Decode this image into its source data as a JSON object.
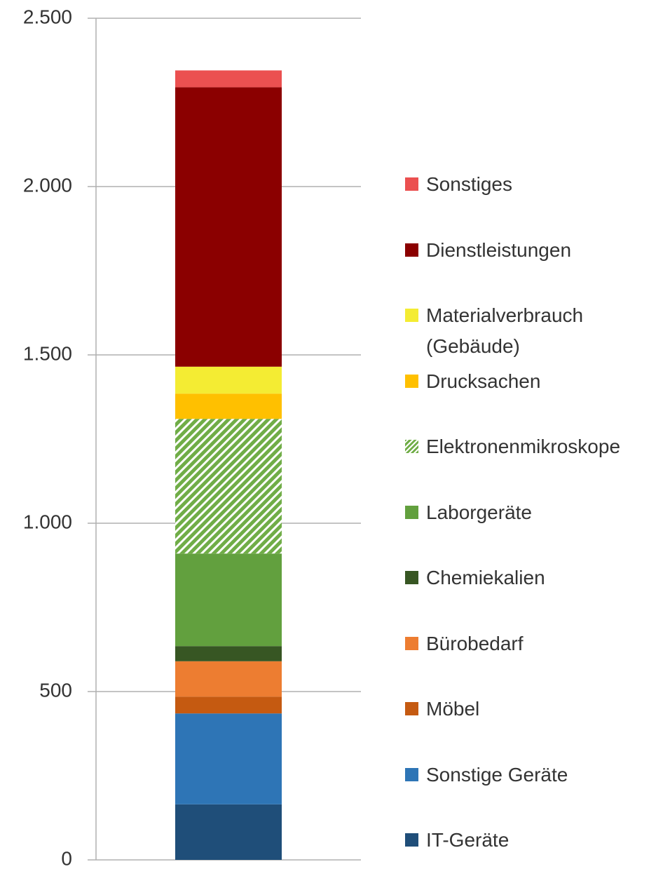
{
  "chart_data": {
    "type": "stacked_bar",
    "categories": [
      null
    ],
    "ylim": [
      0,
      2500
    ],
    "yticks": [
      0,
      500,
      {
        "value": 1000,
        "label": "1.000"
      },
      {
        "value": 1500,
        "label": "1.500"
      },
      {
        "value": 2000,
        "label": "2.000"
      },
      {
        "value": 2500,
        "label": "2.500"
      }
    ],
    "grid": true,
    "legend": "right",
    "series": [
      {
        "name": "IT-Geräte",
        "color": "#1f4e79",
        "values": [
          165
        ]
      },
      {
        "name": "Sonstige Geräte",
        "color": "#2e75b6",
        "values": [
          270
        ]
      },
      {
        "name": "Möbel",
        "color": "#c55a11",
        "values": [
          50
        ]
      },
      {
        "name": "Bürobedarf",
        "color": "#ed7d31",
        "values": [
          105
        ]
      },
      {
        "name": "Chemiekalien",
        "color": "#375623",
        "values": [
          45
        ]
      },
      {
        "name": "Laborgeräte",
        "color": "#62a03e",
        "values": [
          275
        ]
      },
      {
        "name": "Elektronenmikroskope",
        "color": "#70ad47",
        "hatch": true,
        "values": [
          400
        ]
      },
      {
        "name": "Drucksachen",
        "color": "#ffc000",
        "values": [
          75
        ]
      },
      {
        "name": "Materialverbrauch (Gebäude)",
        "color": "#f4ec33",
        "values": [
          80
        ]
      },
      {
        "name": "Dienstleistungen",
        "color": "#8b0000",
        "values": [
          830
        ]
      },
      {
        "name": "Sonstiges",
        "color": "#eb5050",
        "values": [
          50
        ]
      }
    ]
  }
}
